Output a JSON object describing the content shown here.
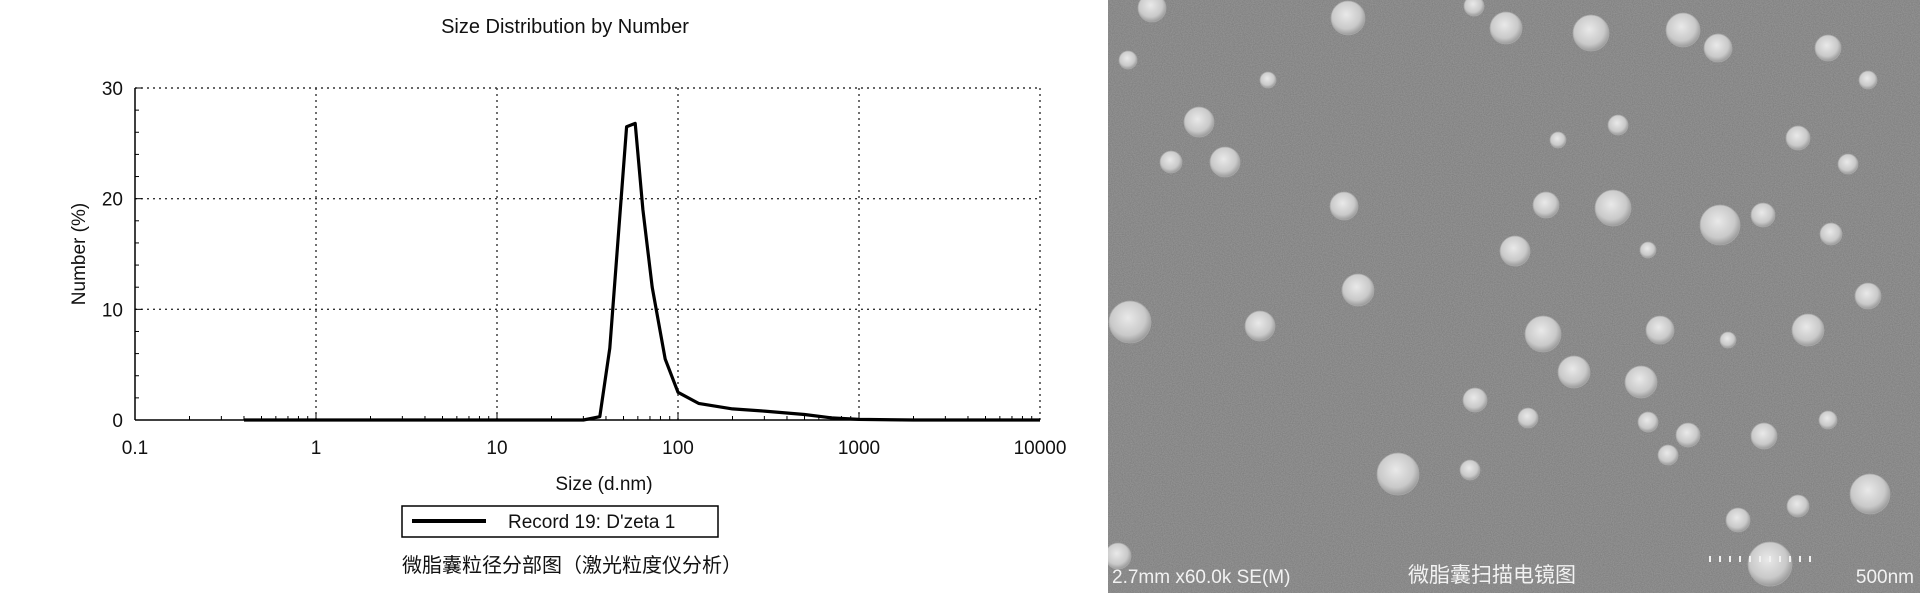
{
  "chart_data": {
    "type": "line",
    "title": "Size Distribution by Number",
    "xlabel": "Size (d.nm)",
    "ylabel": "Number (%)",
    "x_scale": "log",
    "xlim": [
      0.1,
      10000
    ],
    "ylim": [
      0,
      30
    ],
    "x_ticks": [
      "0.1",
      "1",
      "10",
      "100",
      "1000",
      "10000"
    ],
    "y_ticks": [
      "0",
      "10",
      "20",
      "30"
    ],
    "grid": true,
    "legend_position": "bottom",
    "series": [
      {
        "name": "Record 19: D'zeta 1",
        "color": "#000000",
        "x": [
          0.4,
          1,
          10,
          30,
          37,
          42,
          52,
          58,
          64,
          72,
          85,
          100,
          130,
          200,
          300,
          500,
          700,
          1000,
          2000,
          5000,
          10000
        ],
        "y": [
          0,
          0,
          0,
          0,
          0.3,
          6.5,
          26.5,
          26.8,
          19,
          12,
          5.5,
          2.5,
          1.5,
          1.0,
          0.8,
          0.5,
          0.2,
          0.05,
          0,
          0,
          0
        ]
      }
    ]
  },
  "chart_caption": "微脂囊粒径分部图（激光粒度仪分析）",
  "sem": {
    "info": "2.7mm x60.0k SE(M)",
    "caption": "微脂囊扫描电镜图",
    "scale_label": "500nm"
  }
}
